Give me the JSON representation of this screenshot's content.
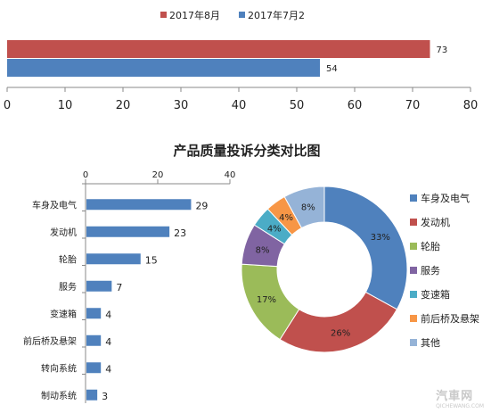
{
  "chart_data": [
    {
      "type": "bar",
      "orientation": "horizontal",
      "series": [
        {
          "name": "2017年8月",
          "color": "#c0504d",
          "value": 73
        },
        {
          "name": "2017年7月2",
          "color": "#4f81bd",
          "value": 54
        }
      ],
      "xlim": [
        0,
        80
      ],
      "xticks": [
        "0",
        "10",
        "20",
        "30",
        "40",
        "50",
        "60",
        "70",
        "80"
      ],
      "legend": "top-center",
      "grid": false
    },
    {
      "type": "bar",
      "orientation": "horizontal",
      "title": "产品质量投诉分类对比图",
      "categories": [
        "车身及电气",
        "发动机",
        "轮胎",
        "服务",
        "变速箱",
        "前后桥及悬架",
        "转向系统",
        "制动系统"
      ],
      "values": [
        29,
        23,
        15,
        7,
        4,
        4,
        4,
        3
      ],
      "xlim": [
        0,
        40
      ],
      "xticks": [
        "0",
        "20",
        "40"
      ],
      "color": "#4f81bd",
      "grid": false
    },
    {
      "type": "pie",
      "donut": true,
      "categories": [
        "车身及电气",
        "发动机",
        "轮胎",
        "服务",
        "变速箱",
        "前后桥及悬架",
        "其他"
      ],
      "values": [
        33,
        26,
        17,
        8,
        4,
        4,
        8
      ],
      "labels": [
        "33%",
        "26%",
        "17%",
        "8%",
        "4%",
        "4%",
        "8%"
      ],
      "colors": [
        "#4f81bd",
        "#c0504d",
        "#9bbb59",
        "#8064a2",
        "#4bacc6",
        "#f79646",
        "#95b3d7"
      ],
      "legend": "right"
    }
  ],
  "watermark": {
    "text": "汽車网",
    "sub": "QICHEWANG.COM"
  }
}
